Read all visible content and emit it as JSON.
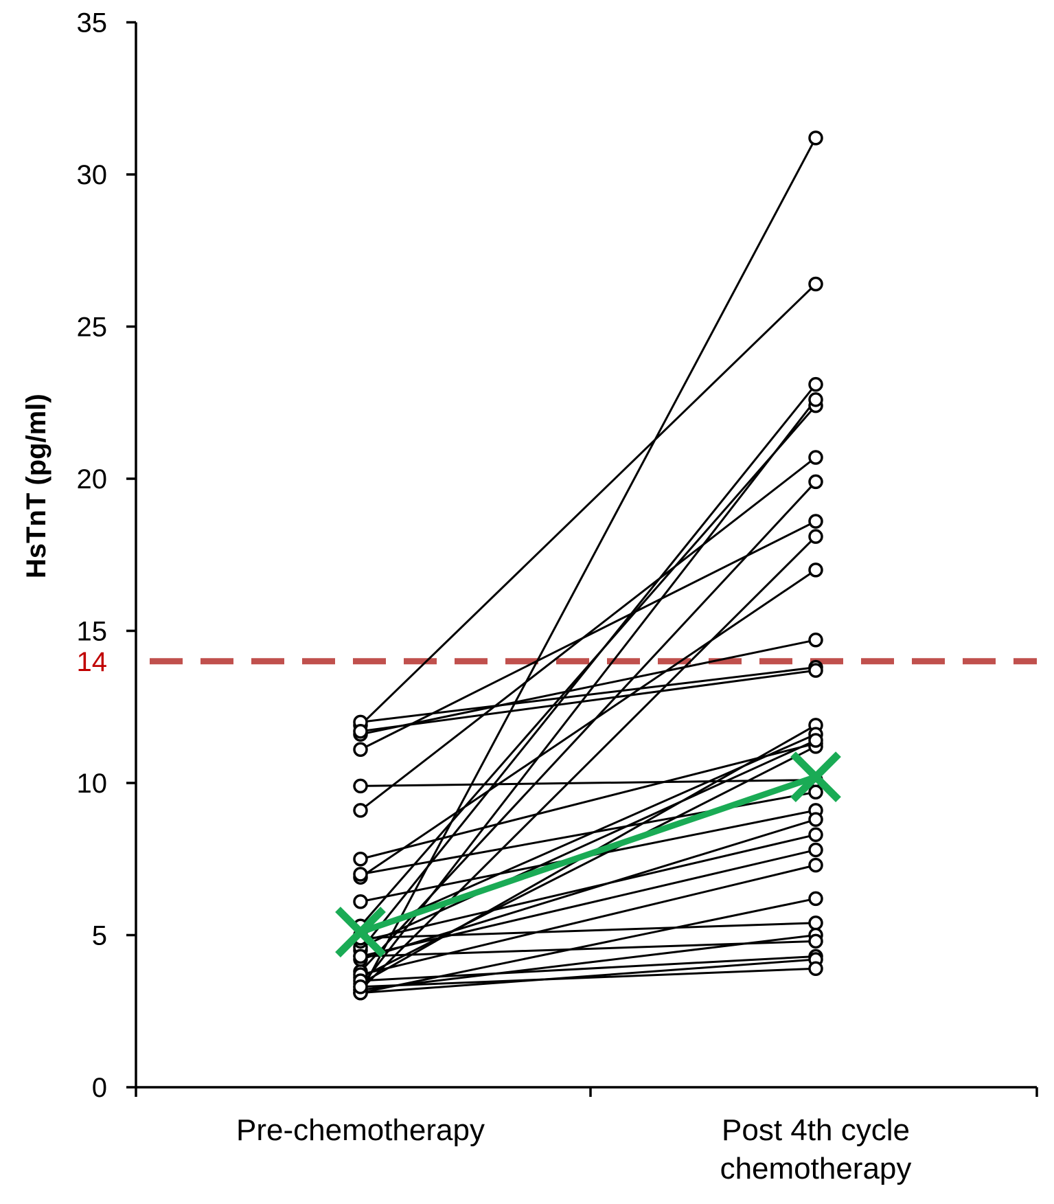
{
  "chart_data": {
    "type": "line",
    "title": "",
    "xlabel": "",
    "ylabel": "HsTnT (pg/ml)",
    "ylim": [
      0,
      35
    ],
    "yticks": [
      "0",
      "5",
      "10",
      "15",
      "20",
      "25",
      "30",
      "35"
    ],
    "categories": [
      "Pre-chemotherapy",
      "Post 4th cycle chemotherapy"
    ],
    "category_lines": [
      [
        "Pre-chemotherapy"
      ],
      [
        "Post 4th cycle",
        "chemotherapy"
      ]
    ],
    "reference_line": {
      "value": 14,
      "label": "14",
      "style": "dashed"
    },
    "grid": false,
    "legend": "none",
    "colors": {
      "series_line": "#000000",
      "marker_fill": "#ffffff",
      "reference_line": "#c0504d",
      "reference_label": "#c00000",
      "mean_line": "#1aab55",
      "axis": "#000000"
    },
    "series": [
      {
        "values": [
          3.1,
          31.2
        ]
      },
      {
        "values": [
          11.9,
          26.4
        ]
      },
      {
        "values": [
          4.5,
          23.1
        ]
      },
      {
        "values": [
          5.3,
          22.4
        ]
      },
      {
        "values": [
          3.3,
          22.6
        ]
      },
      {
        "values": [
          9.1,
          20.7
        ]
      },
      {
        "values": [
          3.8,
          19.9
        ]
      },
      {
        "values": [
          11.1,
          18.6
        ]
      },
      {
        "values": [
          3.2,
          18.1
        ]
      },
      {
        "values": [
          6.9,
          17.0
        ]
      },
      {
        "values": [
          11.6,
          14.7
        ]
      },
      {
        "values": [
          12.0,
          13.8
        ]
      },
      {
        "values": [
          11.7,
          13.7
        ]
      },
      {
        "values": [
          3.4,
          11.9
        ]
      },
      {
        "values": [
          9.9,
          10.1
        ]
      },
      {
        "values": [
          7.5,
          11.3
        ]
      },
      {
        "values": [
          5.0,
          11.6
        ]
      },
      {
        "values": [
          3.6,
          11.2
        ]
      },
      {
        "values": [
          4.6,
          11.4
        ]
      },
      {
        "values": [
          7.0,
          9.7
        ]
      },
      {
        "values": [
          6.1,
          9.1
        ]
      },
      {
        "values": [
          4.2,
          8.8
        ]
      },
      {
        "values": [
          4.8,
          8.3
        ]
      },
      {
        "values": [
          4.3,
          7.8
        ]
      },
      {
        "values": [
          3.7,
          7.3
        ]
      },
      {
        "values": [
          3.1,
          6.2
        ]
      },
      {
        "values": [
          4.9,
          5.4
        ]
      },
      {
        "values": [
          3.2,
          5.0
        ]
      },
      {
        "values": [
          4.3,
          4.8
        ]
      },
      {
        "values": [
          3.5,
          4.3
        ]
      },
      {
        "values": [
          3.1,
          4.2
        ]
      },
      {
        "values": [
          3.3,
          3.9
        ]
      }
    ],
    "mean": {
      "values": [
        5.1,
        10.2
      ]
    }
  }
}
